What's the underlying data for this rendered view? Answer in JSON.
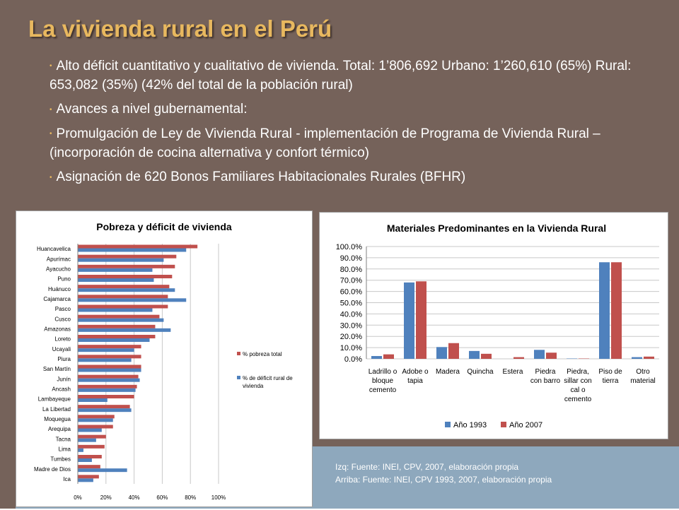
{
  "slide": {
    "title": "La vivienda rural en el Perú",
    "bullets": [
      "Alto déficit cuantitativo y cualitativo de vivienda. Total: 1’806,692 Urbano: 1’260,610 (65%) Rural: 653,082 (35%)  (42% del total de la población rural)",
      "Avances a nivel gubernamental:",
      "Promulgación de Ley de Vivienda Rural - implementación de Programa de Vivienda Rural – (incorporación de cocina alternativa y confort térmico)",
      "Asignación de 620 Bonos Familiares Habitacionales Rurales (BFHR)"
    ],
    "sources": [
      "Izq: Fuente: INEI, CPV, 2007, elaboración propia",
      "Arriba: Fuente: INEI, CPV 1993, 2007, elaboración propia"
    ]
  },
  "colors": {
    "background": "#75625a",
    "footer": "#8ea8bd",
    "title": "#e8b85f",
    "series_red": "#c0504d",
    "series_blue": "#4f81bd"
  },
  "chart_data": [
    {
      "type": "bar",
      "orientation": "horizontal",
      "title": "Pobreza y déficit de vivienda",
      "categories": [
        "Huancavelica",
        "Apurímac",
        "Ayacucho",
        "Puno",
        "Huánuco",
        "Cajamarca",
        "Pasco",
        "Cusco",
        "Amazonas",
        "Loreto",
        "Ucayali",
        "Piura",
        "San Martín",
        "Junín",
        "Ancash",
        "Lambayeque",
        "La Libertad",
        "Moquegua",
        "Arequipa",
        "Tacna",
        "Lima",
        "Tumbes",
        "Madre de Dios",
        "Ica"
      ],
      "series": [
        {
          "name": "% pobreza total",
          "values": [
            85,
            70,
            69,
            67,
            65,
            64,
            64,
            58,
            55,
            55,
            45,
            45,
            45,
            43,
            42,
            40,
            37,
            26,
            25,
            20,
            19,
            17,
            16,
            15
          ]
        },
        {
          "name": "% de déficit rural de vivienda",
          "values": [
            77,
            61,
            53,
            54,
            69,
            77,
            53,
            61,
            66,
            51,
            40,
            38,
            45,
            44,
            41,
            21,
            38,
            25,
            17,
            13,
            4,
            10,
            35,
            11
          ]
        }
      ],
      "x_ticks": [
        "0%",
        "20%",
        "40%",
        "60%",
        "80%",
        "100%"
      ],
      "xlim": [
        0,
        100
      ],
      "grid": true,
      "legend": "right"
    },
    {
      "type": "bar",
      "title": "Materiales Predominantes en la Vivienda Rural",
      "categories": [
        "Ladrillo o bloque cemento",
        "Adobe o tapia",
        "Madera",
        "Quincha",
        "Estera",
        "Piedra con barro",
        "Piedra, sillar con cal o cemento",
        "Piso de tierra",
        "Otro material"
      ],
      "category_lines": [
        [
          "Ladrillo o",
          "bloque",
          "cemento"
        ],
        [
          "Adobe o",
          "tapia"
        ],
        [
          "Madera"
        ],
        [
          "Quincha"
        ],
        [
          "Estera"
        ],
        [
          "Piedra",
          "con barro"
        ],
        [
          "Piedra,",
          "sillar con",
          "cal o",
          "cemento"
        ],
        [
          "Piso de",
          "tierra"
        ],
        [
          "Otro",
          "material"
        ]
      ],
      "series": [
        {
          "name": "Año 1993",
          "values": [
            2.5,
            68.0,
            10.5,
            7.0,
            0.0,
            8.0,
            0.3,
            86.0,
            1.5
          ]
        },
        {
          "name": "Año 2007",
          "values": [
            4.0,
            69.0,
            14.0,
            4.5,
            1.5,
            5.5,
            0.3,
            86.0,
            2.0
          ]
        }
      ],
      "y_ticks": [
        "0.0%",
        "10.0%",
        "20.0%",
        "30.0%",
        "40.0%",
        "50.0%",
        "60.0%",
        "70.0%",
        "80.0%",
        "90.0%",
        "100.0%"
      ],
      "ylim": [
        0,
        100
      ],
      "grid": true,
      "legend": "bottom"
    }
  ]
}
